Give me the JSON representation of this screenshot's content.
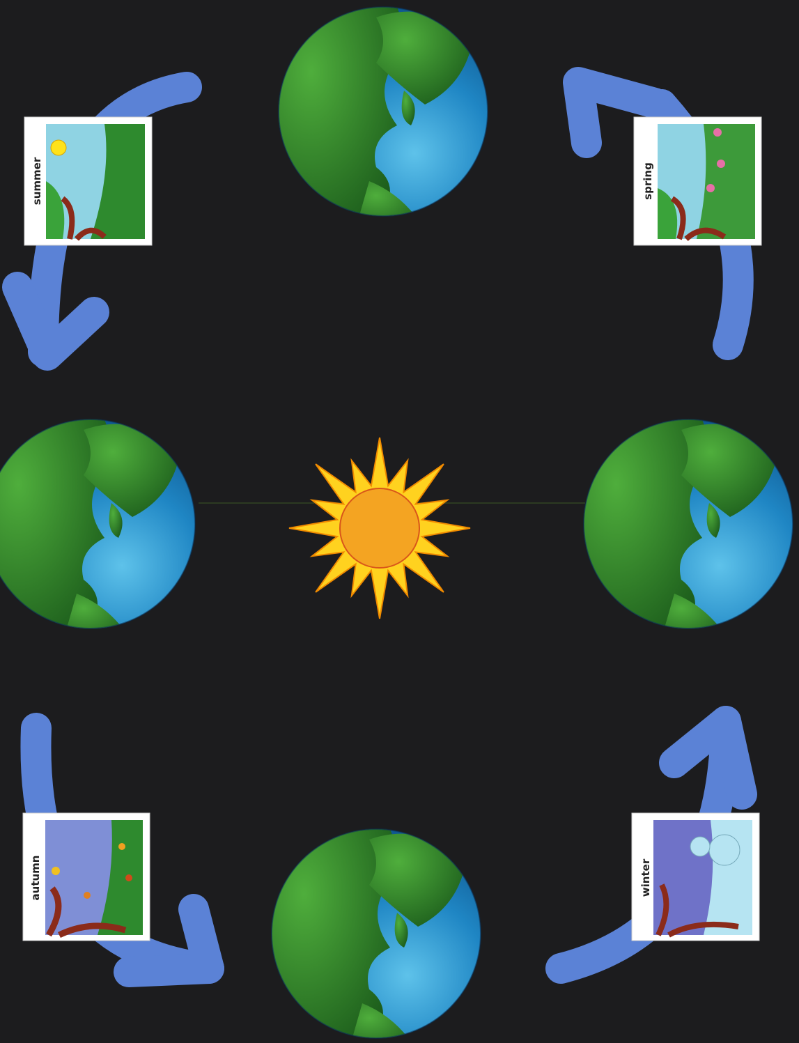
{
  "cards": [
    {
      "label": "summer"
    },
    {
      "label": "spring"
    },
    {
      "label": "autumn"
    },
    {
      "label": "winter"
    }
  ]
}
